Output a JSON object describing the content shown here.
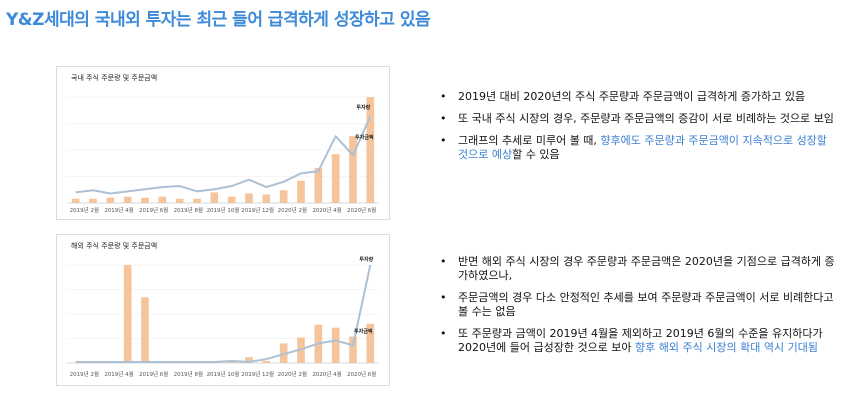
{
  "title": "Y&Z세대의 국내외 투자는 최근 들어 급격하게 성장하고 있음",
  "colors": {
    "accent": "#3c8ad8",
    "bar": "#f6c49a",
    "line": "#adc1d5",
    "highlight": "#3c7fd4"
  },
  "charts": [
    {
      "name": "domestic",
      "label": "국내 주식 주문량 및 주문금액",
      "annotations": {
        "line": "투자량",
        "bar": "투자금액"
      }
    },
    {
      "name": "foreign",
      "label": "해외 주식 주문량 및 주문금액",
      "annotations": {
        "line": "투자량",
        "bar": "투자금액"
      }
    }
  ],
  "chart_data": [
    {
      "type": "bar",
      "title": "국내 주식 주문량 및 주문금액",
      "x_tick_labels": [
        "2019년 2월",
        "2019년 4월",
        "2019년 6월",
        "2019년 8월",
        "2019년 10월",
        "2019년 12월",
        "2020년 2월",
        "2020년 4월",
        "2020년 6월"
      ],
      "series": [
        {
          "name": "투자금액",
          "type": "bar",
          "values": [
            4,
            4,
            5,
            6,
            5,
            6,
            4,
            4,
            10,
            6,
            9,
            8,
            12,
            21,
            33,
            46,
            63,
            100
          ]
        },
        {
          "name": "투자량",
          "type": "line",
          "values": [
            10,
            12,
            9,
            11,
            13,
            15,
            16,
            11,
            13,
            16,
            22,
            15,
            20,
            28,
            30,
            63,
            45,
            82
          ]
        }
      ],
      "grid": true
    },
    {
      "type": "bar",
      "title": "해외 주식 주문량 및 주문금액",
      "x_tick_labels": [
        "2019년 2월",
        "2019년 4월",
        "2019년 6월",
        "2019년 8월",
        "2019년 10월",
        "2019년 12월",
        "2020년 2월",
        "2020년 4월",
        "2020년 6월"
      ],
      "series": [
        {
          "name": "투자금액",
          "type": "bar",
          "values": [
            0,
            0,
            0,
            100,
            67,
            0,
            0,
            2,
            1,
            1,
            6,
            2,
            20,
            26,
            39,
            36,
            27,
            40
          ]
        },
        {
          "name": "투자량",
          "type": "line",
          "values": [
            1,
            1,
            1,
            1,
            1,
            1,
            1,
            1,
            1,
            2,
            1,
            4,
            9,
            14,
            20,
            23,
            18,
            100
          ]
        }
      ],
      "grid": true
    }
  ],
  "bullets_top": [
    {
      "parts": [
        {
          "text": "2019년 대비 2020년의 주식 주문량과 주문금액이 급격하게 증가하고 있음",
          "hl": false
        }
      ]
    },
    {
      "parts": [
        {
          "text": "또 국내 주식 시장의 경우, 주문량과 주문금액의 증감이 서로 비례하는 것으로 보임",
          "hl": false
        }
      ]
    },
    {
      "parts": [
        {
          "text": "그래프의 추세로 미루어 볼 때, ",
          "hl": false
        },
        {
          "text": "향후에도 주문량과 주문금액이 지속적으로 성장할 것으로 예상",
          "hl": true
        },
        {
          "text": "할 수 있음",
          "hl": false
        }
      ]
    }
  ],
  "bullets_bottom": [
    {
      "parts": [
        {
          "text": "반면 해외 주식 시장의 경우 주문량과 주문금액은 2020년을 기점으로 급격하게 증가하였으나,",
          "hl": false
        }
      ]
    },
    {
      "parts": [
        {
          "text": "주문금액의 경우 다소 안정적인 추세를 보여 주문량과 주문금액이 서로 비례한다고 볼 수는 없음",
          "hl": false
        }
      ]
    },
    {
      "parts": [
        {
          "text": "또 주문량과 금액이 2019년 4월을 제외하고 2019년 6월의 수준을 유지하다가 2020년에 들어 급성장한 것으로 보아 ",
          "hl": false
        },
        {
          "text": "향후 해외 주식 시장의 확대 역시 기대됨",
          "hl": true
        }
      ]
    }
  ],
  "bullet_symbol": "•"
}
